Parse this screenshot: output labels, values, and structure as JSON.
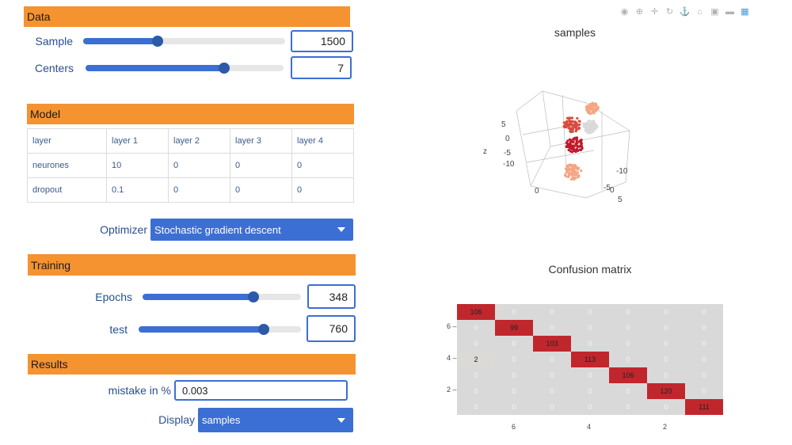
{
  "data_section": {
    "header": "Data",
    "sample": {
      "label": "Sample",
      "value": "1500",
      "level": 0.37
    },
    "centers": {
      "label": "Centers",
      "value": "7",
      "level": 0.7
    }
  },
  "model_section": {
    "header": "Model",
    "table": [
      [
        "layer",
        "layer 1",
        "layer 2",
        "layer 3",
        "layer 4"
      ],
      [
        "neurones",
        "10",
        "0",
        "0",
        "0"
      ],
      [
        "dropout",
        "0.1",
        "0",
        "0",
        "0"
      ]
    ],
    "optimizer": {
      "label": "Optimizer",
      "value": "Stochastic gradient descent"
    }
  },
  "training_section": {
    "header": "Training",
    "epochs": {
      "label": "Epochs",
      "value": "348",
      "level": 0.7
    },
    "test": {
      "label": "test",
      "value": "760",
      "level": 0.77
    }
  },
  "results_section": {
    "header": "Results",
    "mistake": {
      "label": "mistake in %",
      "value": "0.003"
    },
    "display": {
      "label": "Display",
      "value": "samples"
    }
  },
  "modebar_icons": [
    "camera-icon",
    "zoom-icon",
    "pan-icon",
    "orbit-icon",
    "turntable-icon",
    "home-icon",
    "video-icon",
    "hover-icon",
    "plotly-logo-icon"
  ],
  "samples_plot": {
    "title": "samples",
    "axis_ticks": [
      "5",
      "0",
      "-5",
      "-10",
      "z",
      "-10",
      "-5",
      "0",
      "5",
      "0"
    ],
    "colors": [
      "#c0182a",
      "#d94b3f",
      "#f4a582",
      "#d9d9d9"
    ]
  },
  "chart_data": {
    "type": "heatmap",
    "title": "Confusion matrix",
    "rows": [
      [
        106,
        0,
        0,
        0,
        0,
        0,
        0
      ],
      [
        0,
        99,
        0,
        0,
        0,
        0,
        0
      ],
      [
        0,
        0,
        103,
        0,
        0,
        0,
        0
      ],
      [
        2,
        0,
        0,
        113,
        0,
        0,
        0
      ],
      [
        0,
        0,
        0,
        0,
        106,
        0,
        0
      ],
      [
        0,
        0,
        0,
        0,
        0,
        120,
        0
      ],
      [
        0,
        0,
        0,
        0,
        0,
        0,
        111
      ]
    ],
    "y_ticks": [
      "6",
      "4",
      "2"
    ],
    "x_ticks": [
      "6",
      "4",
      "2"
    ],
    "colors": {
      "high": "#c0272d",
      "low": "#d9d9d9",
      "near_zero": "#dcdad6"
    }
  }
}
